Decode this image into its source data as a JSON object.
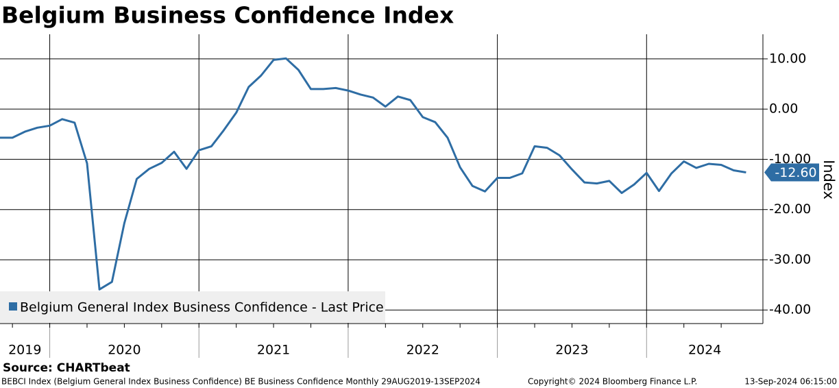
{
  "chart_data": {
    "type": "line",
    "title": "Belgium Business Confidence Index",
    "y_axis_label": "Index",
    "source": "Source: CHARTbeat",
    "footer_left": "BEBCI Index (Belgium General Index Business Confidence) BE Business Confidence  Monthly 29AUG2019-13SEP2024",
    "footer_center": "Copyright© 2024 Bloomberg Finance L.P.",
    "footer_right": "13-Sep-2024 06:15:00",
    "last_value_label": "-12.60",
    "legend_position": "lower left",
    "grid": true,
    "x": [
      "2019-08",
      "2019-09",
      "2019-10",
      "2019-11",
      "2019-12",
      "2020-01",
      "2020-02",
      "2020-03",
      "2020-04",
      "2020-05",
      "2020-06",
      "2020-07",
      "2020-08",
      "2020-09",
      "2020-10",
      "2020-11",
      "2020-12",
      "2021-01",
      "2021-02",
      "2021-03",
      "2021-04",
      "2021-05",
      "2021-06",
      "2021-07",
      "2021-08",
      "2021-09",
      "2021-10",
      "2021-11",
      "2021-12",
      "2022-01",
      "2022-02",
      "2022-03",
      "2022-04",
      "2022-05",
      "2022-06",
      "2022-07",
      "2022-08",
      "2022-09",
      "2022-10",
      "2022-11",
      "2022-12",
      "2023-01",
      "2023-02",
      "2023-03",
      "2023-04",
      "2023-05",
      "2023-06",
      "2023-07",
      "2023-08",
      "2023-09",
      "2023-10",
      "2023-11",
      "2023-12",
      "2024-01",
      "2024-02",
      "2024-03",
      "2024-04",
      "2024-05",
      "2024-06",
      "2024-07",
      "2024-08"
    ],
    "xticks": [
      "2019",
      "2020",
      "2021",
      "2022",
      "2023",
      "2024"
    ],
    "series": [
      {
        "name": "Belgium General Index Business Confidence - Last Price",
        "color": "#2e6da4",
        "values": [
          -5.7,
          -5.7,
          -4.5,
          -3.7,
          -3.3,
          -2.0,
          -2.7,
          -10.8,
          -35.9,
          -34.4,
          -22.7,
          -13.9,
          -11.9,
          -10.7,
          -8.5,
          -11.9,
          -8.2,
          -7.4,
          -4.2,
          -0.7,
          4.4,
          6.7,
          9.8,
          10.1,
          7.8,
          4.0,
          4.0,
          4.2,
          3.7,
          2.9,
          2.3,
          0.5,
          2.5,
          1.8,
          -1.6,
          -2.6,
          -5.7,
          -11.6,
          -15.3,
          -16.4,
          -13.7,
          -13.7,
          -12.8,
          -7.4,
          -7.7,
          -9.2,
          -12.0,
          -14.6,
          -14.8,
          -14.3,
          -16.7,
          -15.0,
          -12.7,
          -16.3,
          -12.8,
          -10.4,
          -11.7,
          -10.9,
          -11.1,
          -12.2,
          -12.6
        ]
      }
    ],
    "ylim": [
      -42.7,
      14.9
    ],
    "yticks": [
      {
        "value": 10,
        "label": "10.00"
      },
      {
        "value": 0,
        "label": "0.00"
      },
      {
        "value": -10,
        "label": "-10.00"
      },
      {
        "value": -20,
        "label": "-20.00"
      },
      {
        "value": -30,
        "label": "-30.00"
      },
      {
        "value": -40,
        "label": "-40.00"
      }
    ]
  }
}
